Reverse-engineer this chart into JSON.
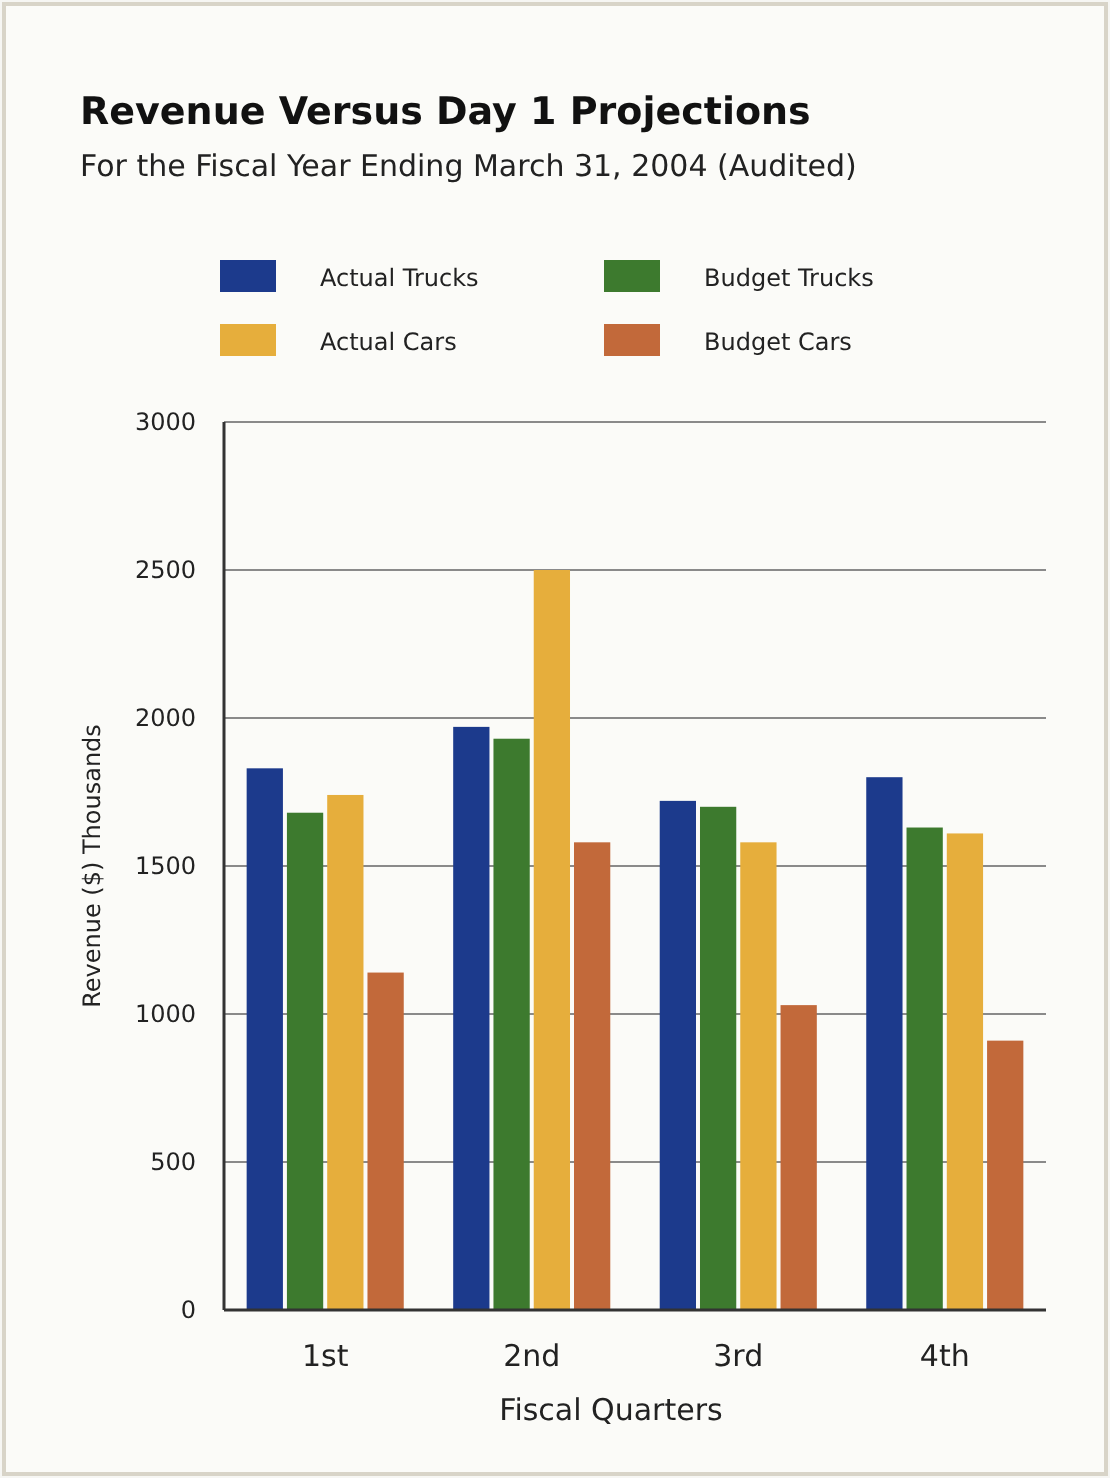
{
  "chart_data": {
    "type": "bar",
    "title": "Revenue Versus Day 1 Projections",
    "subtitle": "For the Fiscal Year Ending March 31, 2004 (Audited)",
    "xlabel": "Fiscal Quarters",
    "ylabel": "Revenue ($) Thousands",
    "categories": [
      "1st",
      "2nd",
      "3rd",
      "4th"
    ],
    "series": [
      {
        "name": "Actual Trucks",
        "color": "#1c3a8c",
        "values": [
          1830,
          1970,
          1720,
          1800
        ]
      },
      {
        "name": "Budget Trucks",
        "color": "#3d7a2e",
        "values": [
          1680,
          1930,
          1700,
          1630
        ]
      },
      {
        "name": "Actual Cars",
        "color": "#e6ae3c",
        "values": [
          1740,
          2500,
          1580,
          1610
        ]
      },
      {
        "name": "Budget Cars",
        "color": "#c2693a",
        "values": [
          1140,
          1580,
          1030,
          910
        ]
      }
    ],
    "ylim": [
      0,
      3000
    ],
    "yticks": [
      0,
      500,
      1000,
      1500,
      2000,
      2500,
      3000
    ],
    "grid": "y",
    "legend": "top left"
  }
}
